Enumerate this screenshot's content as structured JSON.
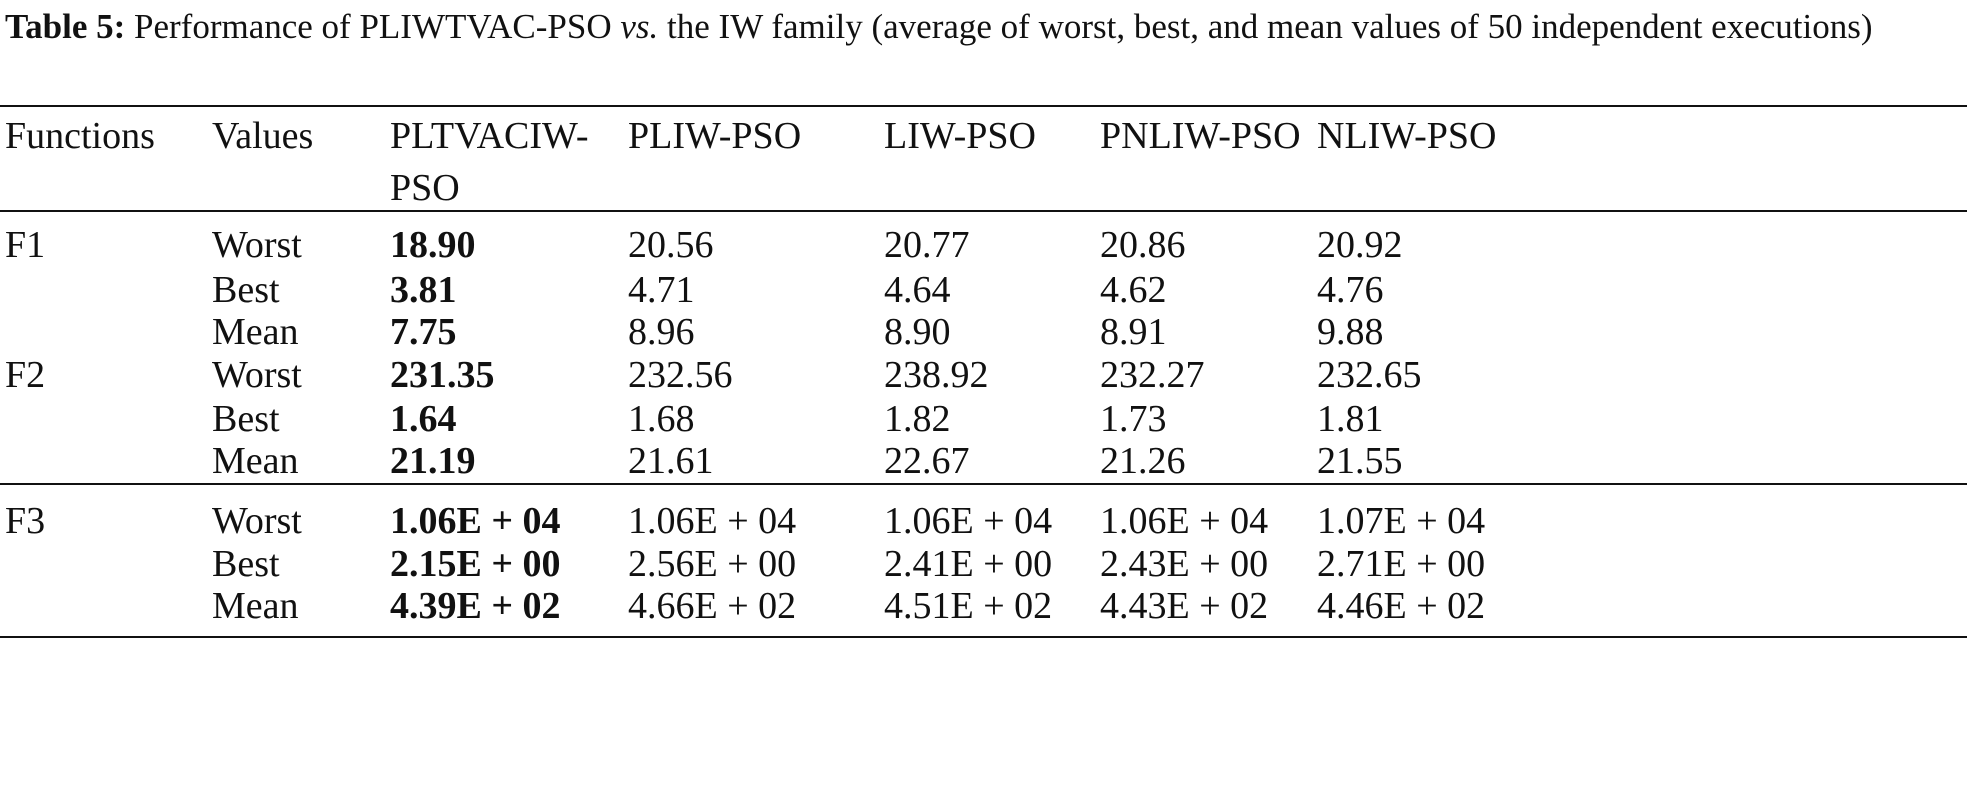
{
  "caption": {
    "label": "Table 5:",
    "part1": " Performance of PLIWTVAC-PSO ",
    "vs": "vs.",
    "part2": " the IW family (average of worst, best, and mean values of 50 independent executions)"
  },
  "headers": [
    "Functions",
    "Values",
    "PLTVACIW-PSO",
    "PLIW-PSO",
    "LIW-PSO",
    "PNLIW-PSO",
    "NLIW-PSO"
  ],
  "header_lines": [
    [
      "Functions"
    ],
    [
      "Values"
    ],
    [
      "PLTVACIW-",
      "PSO"
    ],
    [
      "PLIW-PSO"
    ],
    [
      "LIW-PSO"
    ],
    [
      "PNLIW-PSO"
    ],
    [
      "NLIW-PSO"
    ]
  ],
  "rows": [
    {
      "fn": "F1",
      "value": "Worst",
      "cells": [
        "18.90",
        "20.56",
        "20.77",
        "20.86",
        "20.92"
      ]
    },
    {
      "fn": "",
      "value": "Best",
      "cells": [
        "3.81",
        "4.71",
        "4.64",
        "4.62",
        "4.76"
      ]
    },
    {
      "fn": "",
      "value": "Mean",
      "cells": [
        "7.75",
        "8.96",
        "8.90",
        "8.91",
        "9.88"
      ]
    },
    {
      "fn": "F2",
      "value": "Worst",
      "cells": [
        "231.35",
        "232.56",
        "238.92",
        "232.27",
        "232.65"
      ]
    },
    {
      "fn": "",
      "value": "Best",
      "cells": [
        "1.64",
        "1.68",
        "1.82",
        "1.73",
        "1.81"
      ]
    },
    {
      "fn": "",
      "value": "Mean",
      "cells": [
        "21.19",
        "21.61",
        "22.67",
        "21.26",
        "21.55"
      ]
    },
    {
      "fn": "F3",
      "value": "Worst",
      "cells": [
        "1.06E + 04",
        "1.06E + 04",
        "1.06E + 04",
        "1.06E + 04",
        "1.07E + 04"
      ]
    },
    {
      "fn": "",
      "value": "Best",
      "cells": [
        "2.15E + 00",
        "2.56E + 00",
        "2.41E + 00",
        "2.43E + 00",
        "2.71E + 00"
      ]
    },
    {
      "fn": "",
      "value": "Mean",
      "cells": [
        "4.39E + 02",
        "4.66E + 02",
        "4.51E + 02",
        "4.43E + 02",
        "4.46E + 02"
      ]
    }
  ]
}
